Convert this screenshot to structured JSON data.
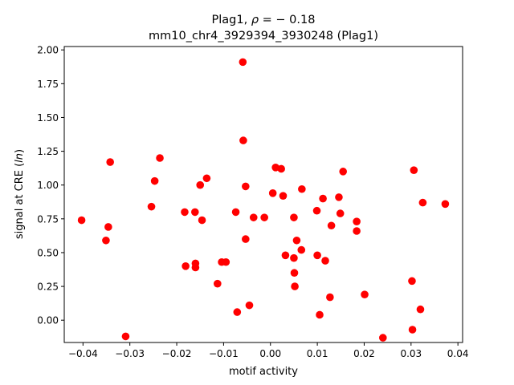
{
  "chart_data": {
    "type": "scatter",
    "title_line1": "Plag1, ρ = − 0.18",
    "title_line2": "mm10_chr4_3929394_3930248 (Plag1)",
    "xlabel": "motif activity",
    "ylabel": "signal at CRE (ln)",
    "xlim": [
      -0.044,
      0.041
    ],
    "ylim": [
      -0.165,
      2.025
    ],
    "xticks": [
      -0.04,
      -0.03,
      -0.02,
      -0.01,
      0.0,
      0.01,
      0.02,
      0.03,
      0.04
    ],
    "xtick_labels": [
      "−0.04",
      "−0.03",
      "−0.02",
      "−0.01",
      "0.00",
      "0.01",
      "0.02",
      "0.03",
      "0.04"
    ],
    "yticks": [
      0.0,
      0.25,
      0.5,
      0.75,
      1.0,
      1.25,
      1.5,
      1.75,
      2.0
    ],
    "ytick_labels": [
      "0.00",
      "0.25",
      "0.50",
      "0.75",
      "1.00",
      "1.25",
      "1.50",
      "1.75",
      "2.00"
    ],
    "grid": false,
    "point_color": "#ff0000",
    "points": [
      [
        -0.0403,
        0.74
      ],
      [
        -0.0346,
        0.69
      ],
      [
        -0.0351,
        0.59
      ],
      [
        -0.0342,
        1.17
      ],
      [
        -0.0309,
        -0.12
      ],
      [
        -0.0254,
        0.84
      ],
      [
        -0.0247,
        1.03
      ],
      [
        -0.0236,
        1.2
      ],
      [
        -0.0183,
        0.8
      ],
      [
        -0.0181,
        0.4
      ],
      [
        -0.0161,
        0.8
      ],
      [
        -0.016,
        0.42
      ],
      [
        -0.016,
        0.39
      ],
      [
        -0.015,
        1.0
      ],
      [
        -0.0146,
        0.74
      ],
      [
        -0.0136,
        1.05
      ],
      [
        -0.0113,
        0.27
      ],
      [
        -0.0104,
        0.43
      ],
      [
        -0.0095,
        0.43
      ],
      [
        -0.0074,
        0.8
      ],
      [
        -0.0071,
        0.06
      ],
      [
        -0.0059,
        1.91
      ],
      [
        -0.0058,
        1.33
      ],
      [
        -0.0053,
        0.99
      ],
      [
        -0.0053,
        0.6
      ],
      [
        -0.0045,
        0.11
      ],
      [
        -0.0036,
        0.76
      ],
      [
        -0.0013,
        0.76
      ],
      [
        0.0005,
        0.94
      ],
      [
        0.0011,
        1.13
      ],
      [
        0.0023,
        1.12
      ],
      [
        0.0027,
        0.92
      ],
      [
        0.0032,
        0.48
      ],
      [
        0.005,
        0.76
      ],
      [
        0.005,
        0.46
      ],
      [
        0.0051,
        0.35
      ],
      [
        0.0052,
        0.25
      ],
      [
        0.0056,
        0.59
      ],
      [
        0.0066,
        0.52
      ],
      [
        0.0067,
        0.97
      ],
      [
        0.0099,
        0.81
      ],
      [
        0.01,
        0.48
      ],
      [
        0.0105,
        0.04
      ],
      [
        0.0112,
        0.9
      ],
      [
        0.0117,
        0.44
      ],
      [
        0.0127,
        0.17
      ],
      [
        0.013,
        0.7
      ],
      [
        0.0146,
        0.91
      ],
      [
        0.0149,
        0.79
      ],
      [
        0.0155,
        1.1
      ],
      [
        0.0184,
        0.73
      ],
      [
        0.0184,
        0.66
      ],
      [
        0.0201,
        0.19
      ],
      [
        0.024,
        -0.13
      ],
      [
        0.0302,
        0.29
      ],
      [
        0.0303,
        -0.07
      ],
      [
        0.0306,
        1.11
      ],
      [
        0.032,
        0.08
      ],
      [
        0.0325,
        0.87
      ],
      [
        0.0373,
        0.86
      ]
    ]
  }
}
